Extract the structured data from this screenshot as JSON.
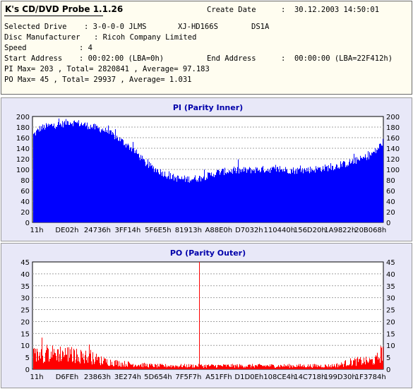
{
  "app_title": "K's CD/DVD Probe 1.1.26",
  "info": {
    "create_date_label": "Create Date",
    "create_date_value": ":  30.12.2003 14:50:01",
    "selected_drive_label": "Selected Drive",
    "selected_drive_value": ": 3-0-0-0 JLMS",
    "drive_model": "XJ-HD166S",
    "drive_firmware": "DS1A",
    "disc_manufacturer_label": "Disc Manufacturer",
    "disc_manufacturer_value": ": Ricoh Company Limited",
    "speed_label": "Speed",
    "speed_value": ": 4",
    "start_address_label": "Start Address",
    "start_address_value": ": 00:02:00 (LBA=0h)",
    "end_address_label": "End Address",
    "end_address_value": ":  00:00:00 (LBA=22F412h)",
    "pi_stats": "PI Max= 203 , Total= 2820841 , Average= 97.183",
    "po_stats": "PO Max= 45 , Total= 29937 , Average= 1.031"
  },
  "colors": {
    "panel_background": "#e8e8f8",
    "pi_fill": "#0000ff",
    "po_fill": "#ff0000",
    "title_color": "#0000aa",
    "grid_color": "#a0a0a0"
  },
  "chart_data": [
    {
      "type": "area",
      "title": "PI (Parity Inner)",
      "ylim": [
        0,
        200
      ],
      "yticks": [
        0,
        20,
        40,
        60,
        80,
        100,
        120,
        140,
        160,
        180,
        200
      ],
      "x_tick_labels": [
        "11h",
        "DE02h",
        "24736h",
        "3FF14h",
        "5F6E5h",
        "81913h",
        "A88E0h",
        "D7032h",
        "110440h",
        "156D20h",
        "1A9822h",
        "20B068h"
      ],
      "grid": true,
      "max": 203,
      "total": 2820841,
      "average": 97.183,
      "profile": {
        "x": [
          0,
          0.02,
          0.05,
          0.08,
          0.1,
          0.13,
          0.16,
          0.2,
          0.24,
          0.28,
          0.3,
          0.32,
          0.35,
          0.38,
          0.4,
          0.42,
          0.45,
          0.48,
          0.5,
          0.53,
          0.56,
          0.6,
          0.65,
          0.7,
          0.75,
          0.8,
          0.85,
          0.88,
          0.9,
          0.92,
          0.94,
          0.96,
          0.98,
          1.0
        ],
        "y": [
          165,
          178,
          183,
          185,
          190,
          187,
          182,
          175,
          160,
          140,
          128,
          112,
          100,
          90,
          85,
          82,
          82,
          84,
          88,
          95,
          97,
          98,
          100,
          100,
          98,
          100,
          104,
          108,
          112,
          116,
          120,
          126,
          135,
          152
        ]
      }
    },
    {
      "type": "bar",
      "title": "PO (Parity Outer)",
      "ylim": [
        0,
        45
      ],
      "yticks": [
        0,
        5,
        10,
        15,
        20,
        25,
        30,
        35,
        40,
        45
      ],
      "x_tick_labels": [
        "11h",
        "D6FEh",
        "23863h",
        "3E274h",
        "5D654h",
        "7F5F7h",
        "A51FFh",
        "D1D0Eh",
        "108CE4h",
        "14C718h",
        "199D30h",
        "1F3784h"
      ],
      "grid": true,
      "max": 45,
      "total": 29937,
      "average": 1.031,
      "profile": {
        "x": [
          0,
          0.03,
          0.06,
          0.09,
          0.12,
          0.15,
          0.18,
          0.2,
          0.23,
          0.25,
          0.3,
          0.35,
          0.4,
          0.45,
          0.5,
          0.55,
          0.6,
          0.7,
          0.8,
          0.85,
          0.88,
          0.9,
          0.93,
          0.96,
          0.98,
          1.0
        ],
        "y": [
          6,
          6.5,
          7,
          7,
          6,
          5.5,
          4.5,
          3.5,
          3,
          2.5,
          2,
          1.5,
          1.5,
          1.5,
          1.5,
          1.5,
          1.5,
          1.5,
          1.5,
          1.5,
          2,
          3,
          3.5,
          3.5,
          4,
          8
        ]
      },
      "spike": {
        "x": 0.475,
        "y": 45
      }
    }
  ]
}
